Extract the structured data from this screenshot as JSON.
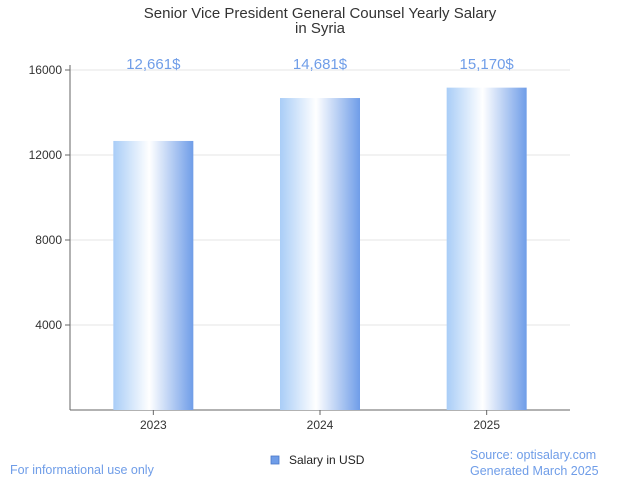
{
  "chart_data": {
    "type": "bar",
    "title_lines": [
      "Senior Vice President General Counsel Yearly Salary",
      "in Syria"
    ],
    "categories": [
      "2023",
      "2024",
      "2025"
    ],
    "series": [
      {
        "name": "Salary in USD",
        "values": [
          12661,
          14681,
          15170
        ]
      }
    ],
    "data_labels": [
      "12,661$",
      "14,681$",
      "15,170$"
    ],
    "ylim": [
      0,
      16000
    ],
    "yticks": [
      4000,
      8000,
      12000,
      16000
    ],
    "grid": true,
    "legend_position": "bottom-center",
    "colors": {
      "bar_edge": "#6f9de8",
      "bar_light": "#ffffff",
      "label": "#6f9de8",
      "grid": "#e6e6e6"
    }
  },
  "footer": {
    "left": "For informational use only",
    "source": "Source: optisalary.com",
    "generated": "Generated March 2025"
  }
}
